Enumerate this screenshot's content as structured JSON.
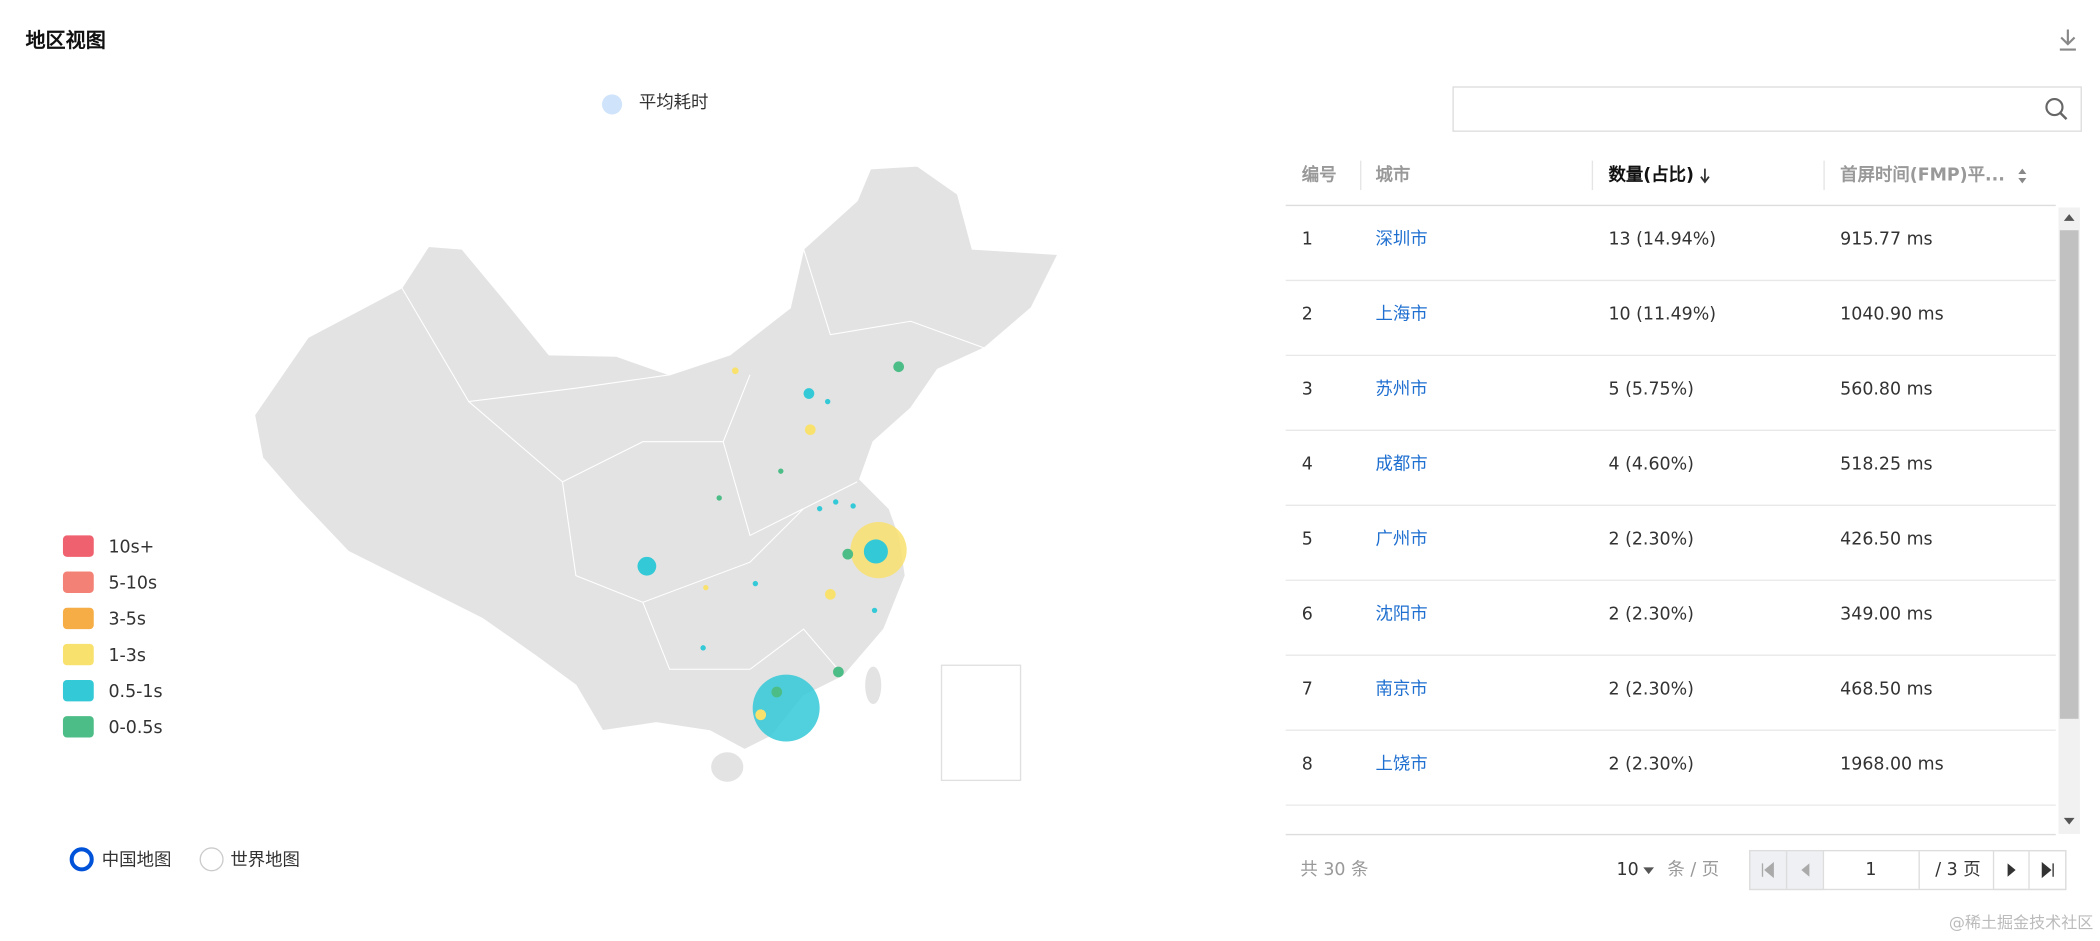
{
  "header": {
    "title": "地区视图"
  },
  "map": {
    "series_legend": "平均耗时",
    "bins": [
      {
        "label": "10s+",
        "color": "#f0616f"
      },
      {
        "label": "5-10s",
        "color": "#f48176"
      },
      {
        "label": "3-5s",
        "color": "#f6ad45"
      },
      {
        "label": "1-3s",
        "color": "#f9e16e"
      },
      {
        "label": "0.5-1s",
        "color": "#33c9d7"
      },
      {
        "label": "0-0.5s",
        "color": "#4dbd87"
      }
    ],
    "switch": [
      "中国地图",
      "世界地图"
    ]
  },
  "table": {
    "columns": [
      "编号",
      "城市",
      "数量(占比)",
      "首屏时间(FMP)平..."
    ],
    "rows": [
      [
        "1",
        "深圳市",
        "13 (14.94%)",
        "915.77 ms"
      ],
      [
        "2",
        "上海市",
        "10 (11.49%)",
        "1040.90 ms"
      ],
      [
        "3",
        "苏州市",
        "5 (5.75%)",
        "560.80 ms"
      ],
      [
        "4",
        "成都市",
        "4 (4.60%)",
        "518.25 ms"
      ],
      [
        "5",
        "广州市",
        "2 (2.30%)",
        "426.50 ms"
      ],
      [
        "6",
        "沈阳市",
        "2 (2.30%)",
        "349.00 ms"
      ],
      [
        "7",
        "南京市",
        "2 (2.30%)",
        "468.50 ms"
      ],
      [
        "8",
        "上饶市",
        "2 (2.30%)",
        "1968.00 ms"
      ]
    ]
  },
  "pagination": {
    "total": "共 30 条",
    "page_size": "10",
    "page_size_unit": "条 / 页",
    "page": "1",
    "page_count": "/ 3 页"
  },
  "watermark": "@稀土掘金技术社区"
}
